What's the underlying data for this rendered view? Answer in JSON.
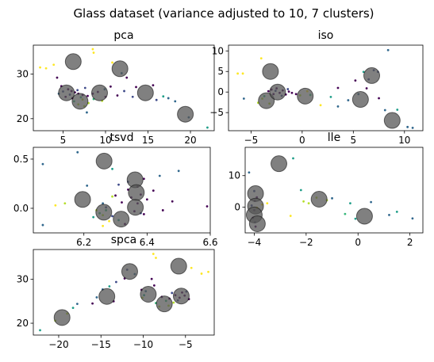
{
  "title": "Glass dataset (variance adjusted to 10, 7 clusters)",
  "palette": {
    "c0": "#440154",
    "c1": "#30678d",
    "c2": "#35b779",
    "c3": "#fde725",
    "c4": "#1f9e89",
    "c5": "#3e4a89",
    "c6": "#b5de2b",
    "center": "#555555"
  },
  "chart_data": [
    {
      "type": "scatter",
      "title": "pca",
      "xlim": [
        1.5,
        22.8
      ],
      "ylim": [
        17.3,
        36.5
      ],
      "xticks": [
        5,
        10,
        15,
        20
      ],
      "yticks": [
        20,
        30
      ],
      "centers": [
        [
          6.2,
          32.8
        ],
        [
          11.7,
          31.2
        ],
        [
          5.4,
          25.8
        ],
        [
          7.0,
          23.9
        ],
        [
          9.3,
          25.8
        ],
        [
          14.7,
          25.8
        ],
        [
          19.4,
          21.0
        ]
      ],
      "points": [
        {
          "x": 2.3,
          "y": 31.5,
          "c": 3
        },
        {
          "x": 3.0,
          "y": 31.3,
          "c": 3
        },
        {
          "x": 3.9,
          "y": 32.1,
          "c": 3
        },
        {
          "x": 8.5,
          "y": 35.6,
          "c": 3
        },
        {
          "x": 8.6,
          "y": 34.8,
          "c": 3
        },
        {
          "x": 10.8,
          "y": 32.6,
          "c": 3
        },
        {
          "x": 4.3,
          "y": 29.2,
          "c": 0
        },
        {
          "x": 4.8,
          "y": 27.3,
          "c": 0
        },
        {
          "x": 5.6,
          "y": 26.6,
          "c": 0
        },
        {
          "x": 6.0,
          "y": 26.2,
          "c": 0
        },
        {
          "x": 6.4,
          "y": 25.9,
          "c": 0
        },
        {
          "x": 6.8,
          "y": 25.6,
          "c": 0
        },
        {
          "x": 7.3,
          "y": 25.3,
          "c": 0
        },
        {
          "x": 7.9,
          "y": 25.1,
          "c": 0
        },
        {
          "x": 8.5,
          "y": 25.6,
          "c": 0
        },
        {
          "x": 9.1,
          "y": 26.0,
          "c": 0
        },
        {
          "x": 10.0,
          "y": 24.9,
          "c": 0
        },
        {
          "x": 10.6,
          "y": 27.2,
          "c": 0
        },
        {
          "x": 11.4,
          "y": 25.2,
          "c": 0
        },
        {
          "x": 12.5,
          "y": 29.2,
          "c": 0
        },
        {
          "x": 13.6,
          "y": 27.1,
          "c": 0
        },
        {
          "x": 15.6,
          "y": 27.5,
          "c": 0
        },
        {
          "x": 5.3,
          "y": 24.9,
          "c": 0
        },
        {
          "x": 6.1,
          "y": 24.6,
          "c": 0
        },
        {
          "x": 5.0,
          "y": 26.1,
          "c": 5
        },
        {
          "x": 5.8,
          "y": 25.4,
          "c": 5
        },
        {
          "x": 6.7,
          "y": 26.4,
          "c": 5
        },
        {
          "x": 7.6,
          "y": 26.9,
          "c": 5
        },
        {
          "x": 12.2,
          "y": 26.2,
          "c": 5
        },
        {
          "x": 13.2,
          "y": 24.9,
          "c": 5
        },
        {
          "x": 16.0,
          "y": 24.2,
          "c": 5
        },
        {
          "x": 6.8,
          "y": 23.2,
          "c": 6
        },
        {
          "x": 7.3,
          "y": 24.3,
          "c": 6
        },
        {
          "x": 8.0,
          "y": 23.5,
          "c": 6
        },
        {
          "x": 9.6,
          "y": 24.0,
          "c": 6
        },
        {
          "x": 7.5,
          "y": 22.8,
          "c": 6
        },
        {
          "x": 4.5,
          "y": 25.6,
          "c": 1
        },
        {
          "x": 7.8,
          "y": 21.4,
          "c": 1
        },
        {
          "x": 9.9,
          "y": 26.6,
          "c": 1
        },
        {
          "x": 11.9,
          "y": 30.2,
          "c": 1
        },
        {
          "x": 17.4,
          "y": 24.6,
          "c": 1
        },
        {
          "x": 18.2,
          "y": 23.9,
          "c": 1
        },
        {
          "x": 19.8,
          "y": 20.3,
          "c": 1
        },
        {
          "x": 6.3,
          "y": 23.9,
          "c": 2
        },
        {
          "x": 7.1,
          "y": 24.8,
          "c": 2
        },
        {
          "x": 8.6,
          "y": 24.4,
          "c": 2
        },
        {
          "x": 16.8,
          "y": 25.0,
          "c": 4
        },
        {
          "x": 22.0,
          "y": 18.0,
          "c": 4
        }
      ]
    },
    {
      "type": "scatter",
      "title": "iso",
      "xlim": [
        -7.2,
        11.8
      ],
      "ylim": [
        -9.4,
        11.4
      ],
      "xticks": [
        -5,
        0,
        5,
        10
      ],
      "yticks": [
        -5,
        0,
        5,
        10
      ],
      "centers": [
        [
          -3.1,
          5.0
        ],
        [
          -3.5,
          -2.1
        ],
        [
          -2.4,
          0.0
        ],
        [
          0.3,
          -1.0
        ],
        [
          5.7,
          -1.8
        ],
        [
          6.8,
          4.0
        ],
        [
          8.8,
          -6.9
        ]
      ],
      "points": [
        {
          "x": -6.3,
          "y": 4.5,
          "c": 3
        },
        {
          "x": -5.8,
          "y": 4.5,
          "c": 3
        },
        {
          "x": -4.0,
          "y": 8.2,
          "c": 3
        },
        {
          "x": 1.8,
          "y": -3.2,
          "c": 3
        },
        {
          "x": 0.5,
          "y": 0.2,
          "c": 3
        },
        {
          "x": -3.0,
          "y": 0.6,
          "c": 0
        },
        {
          "x": -2.8,
          "y": -0.5,
          "c": 0
        },
        {
          "x": -2.5,
          "y": 0.9,
          "c": 0
        },
        {
          "x": -2.2,
          "y": -0.2,
          "c": 0
        },
        {
          "x": -1.9,
          "y": 0.4,
          "c": 0
        },
        {
          "x": -1.6,
          "y": -0.6,
          "c": 0
        },
        {
          "x": -1.3,
          "y": 0.1,
          "c": 0
        },
        {
          "x": -1.0,
          "y": -0.2,
          "c": 0
        },
        {
          "x": -0.6,
          "y": -0.5,
          "c": 0
        },
        {
          "x": -3.3,
          "y": 0.2,
          "c": 0
        },
        {
          "x": 3.5,
          "y": 1.0,
          "c": 0
        },
        {
          "x": 5.2,
          "y": 2.8,
          "c": 0
        },
        {
          "x": 6.3,
          "y": 0.9,
          "c": 0
        },
        {
          "x": 7.5,
          "y": -1.5,
          "c": 0
        },
        {
          "x": -2.6,
          "y": 0.3,
          "c": 5
        },
        {
          "x": -2.0,
          "y": -0.9,
          "c": 5
        },
        {
          "x": -1.4,
          "y": 0.7,
          "c": 5
        },
        {
          "x": 7.0,
          "y": 5.3,
          "c": 5
        },
        {
          "x": 7.4,
          "y": 4.9,
          "c": 5
        },
        {
          "x": 6.5,
          "y": 3.1,
          "c": 5
        },
        {
          "x": -3.9,
          "y": -1.6,
          "c": 6
        },
        {
          "x": -3.2,
          "y": -2.8,
          "c": 6
        },
        {
          "x": -4.3,
          "y": -2.6,
          "c": 6
        },
        {
          "x": -0.2,
          "y": -0.8,
          "c": 6
        },
        {
          "x": -5.7,
          "y": -1.6,
          "c": 1
        },
        {
          "x": 3.5,
          "y": -3.5,
          "c": 1
        },
        {
          "x": 4.5,
          "y": -2.0,
          "c": 1
        },
        {
          "x": 5.5,
          "y": -0.5,
          "c": 1
        },
        {
          "x": 8.1,
          "y": -4.4,
          "c": 1
        },
        {
          "x": 8.4,
          "y": 10.2,
          "c": 1
        },
        {
          "x": 10.3,
          "y": -8.5,
          "c": 1
        },
        {
          "x": 10.8,
          "y": -8.7,
          "c": 1
        },
        {
          "x": -3.7,
          "y": -1.0,
          "c": 2
        },
        {
          "x": 0.8,
          "y": -0.7,
          "c": 2
        },
        {
          "x": 2.8,
          "y": -1.2,
          "c": 4
        },
        {
          "x": 6.0,
          "y": 4.9,
          "c": 4
        },
        {
          "x": 9.3,
          "y": -4.3,
          "c": 4
        }
      ]
    },
    {
      "type": "scatter",
      "title": "tsvd",
      "xlim": [
        6.04,
        6.6
      ],
      "ylim": [
        -0.25,
        0.62
      ],
      "xticks": [
        6.2,
        6.4,
        6.6
      ],
      "xticklabels": [
        "6.2",
        "6.4",
        "6.6"
      ],
      "yticks": [
        0.0,
        0.5
      ],
      "yticklabels": [
        "0.0",
        "0.5"
      ],
      "centers": [
        [
          6.264,
          0.48
        ],
        [
          6.362,
          0.29
        ],
        [
          6.366,
          0.16
        ],
        [
          6.196,
          0.09
        ],
        [
          6.363,
          0.01
        ],
        [
          6.263,
          -0.04
        ],
        [
          6.318,
          -0.11
        ]
      ],
      "points": [
        {
          "x": 6.11,
          "y": 0.03,
          "c": 3
        },
        {
          "x": 6.26,
          "y": -0.18,
          "c": 3
        },
        {
          "x": 6.28,
          "y": -0.13,
          "c": 3
        },
        {
          "x": 6.3,
          "y": 0.13,
          "c": 0
        },
        {
          "x": 6.32,
          "y": 0.06,
          "c": 0
        },
        {
          "x": 6.34,
          "y": 0.19,
          "c": 0
        },
        {
          "x": 6.35,
          "y": 0.11,
          "c": 0
        },
        {
          "x": 6.36,
          "y": -0.03,
          "c": 0
        },
        {
          "x": 6.37,
          "y": 0.22,
          "c": 0
        },
        {
          "x": 6.37,
          "y": 0.05,
          "c": 0
        },
        {
          "x": 6.38,
          "y": 0.14,
          "c": 0
        },
        {
          "x": 6.39,
          "y": 0.3,
          "c": 0
        },
        {
          "x": 6.39,
          "y": -0.06,
          "c": 0
        },
        {
          "x": 6.4,
          "y": 0.09,
          "c": 0
        },
        {
          "x": 6.42,
          "y": 0.18,
          "c": 0
        },
        {
          "x": 6.45,
          "y": -0.02,
          "c": 0
        },
        {
          "x": 6.48,
          "y": 0.07,
          "c": 0
        },
        {
          "x": 6.59,
          "y": 0.02,
          "c": 0
        },
        {
          "x": 6.33,
          "y": -0.16,
          "c": 0
        },
        {
          "x": 6.27,
          "y": 0.01,
          "c": 5
        },
        {
          "x": 6.29,
          "y": -0.08,
          "c": 5
        },
        {
          "x": 6.31,
          "y": 0.24,
          "c": 5
        },
        {
          "x": 6.34,
          "y": 0.27,
          "c": 5
        },
        {
          "x": 6.38,
          "y": -0.05,
          "c": 5
        },
        {
          "x": 6.14,
          "y": 0.05,
          "c": 6
        },
        {
          "x": 6.24,
          "y": -0.02,
          "c": 6
        },
        {
          "x": 6.26,
          "y": -0.07,
          "c": 6
        },
        {
          "x": 6.29,
          "y": 0.12,
          "c": 6
        },
        {
          "x": 6.07,
          "y": 0.45,
          "c": 1
        },
        {
          "x": 6.07,
          "y": -0.17,
          "c": 1
        },
        {
          "x": 6.18,
          "y": 0.57,
          "c": 1
        },
        {
          "x": 6.21,
          "y": 0.23,
          "c": 1
        },
        {
          "x": 6.26,
          "y": 0.05,
          "c": 1
        },
        {
          "x": 6.44,
          "y": 0.33,
          "c": 1
        },
        {
          "x": 6.5,
          "y": 0.38,
          "c": 1
        },
        {
          "x": 6.25,
          "y": -0.05,
          "c": 2
        },
        {
          "x": 6.27,
          "y": -0.02,
          "c": 2
        },
        {
          "x": 6.29,
          "y": 0.4,
          "c": 4
        },
        {
          "x": 6.23,
          "y": -0.09,
          "c": 4
        },
        {
          "x": 6.31,
          "y": -0.12,
          "c": 4
        }
      ]
    },
    {
      "type": "scatter",
      "title": "lle",
      "xlim": [
        -4.35,
        2.5
      ],
      "ylim": [
        -8.2,
        19.0
      ],
      "xticks": [
        -4,
        -2,
        0,
        2
      ],
      "yticks": [
        0,
        10
      ],
      "centers": [
        [
          -3.05,
          13.8
        ],
        [
          -3.95,
          4.3
        ],
        [
          -3.95,
          0.3
        ],
        [
          -4.0,
          -2.5
        ],
        [
          -3.88,
          -5.3
        ],
        [
          -1.5,
          2.5
        ],
        [
          0.25,
          -2.9
        ]
      ],
      "points": [
        {
          "x": -3.9,
          "y": -0.2,
          "c": 3
        },
        {
          "x": -3.7,
          "y": 0.8,
          "c": 3
        },
        {
          "x": -3.5,
          "y": 1.2,
          "c": 3
        },
        {
          "x": -2.6,
          "y": -2.8,
          "c": 3
        },
        {
          "x": -4.05,
          "y": -3.4,
          "c": 0
        },
        {
          "x": -4.0,
          "y": -1.0,
          "c": 0
        },
        {
          "x": -3.98,
          "y": 2.0,
          "c": 0
        },
        {
          "x": -3.95,
          "y": -6.2,
          "c": 0
        },
        {
          "x": -3.9,
          "y": 3.1,
          "c": 0
        },
        {
          "x": -4.1,
          "y": 0.5,
          "c": 5
        },
        {
          "x": -4.0,
          "y": 5.1,
          "c": 5
        },
        {
          "x": -3.97,
          "y": -4.8,
          "c": 5
        },
        {
          "x": -2.1,
          "y": 1.8,
          "c": 6
        },
        {
          "x": -1.9,
          "y": 1.2,
          "c": 6
        },
        {
          "x": -1.6,
          "y": 3.0,
          "c": 6
        },
        {
          "x": -1.2,
          "y": 2.2,
          "c": 6
        },
        {
          "x": -4.2,
          "y": 11.0,
          "c": 1
        },
        {
          "x": -1.0,
          "y": 2.8,
          "c": 1
        },
        {
          "x": 0.5,
          "y": 1.6,
          "c": 1
        },
        {
          "x": 1.2,
          "y": -2.5,
          "c": 1
        },
        {
          "x": 2.1,
          "y": -3.6,
          "c": 1
        },
        {
          "x": -2.5,
          "y": 15.5,
          "c": 4
        },
        {
          "x": -2.2,
          "y": 5.4,
          "c": 4
        },
        {
          "x": -0.3,
          "y": 1.2,
          "c": 4
        },
        {
          "x": -0.1,
          "y": -3.7,
          "c": 4
        },
        {
          "x": 1.5,
          "y": -1.5,
          "c": 4
        },
        {
          "x": -0.5,
          "y": -2.2,
          "c": 2
        }
      ]
    },
    {
      "type": "scatter",
      "title": "spca",
      "xlim": [
        -23.0,
        -1.6
      ],
      "ylim": [
        17.3,
        36.8
      ],
      "xticks": [
        -20,
        -15,
        -10,
        -5
      ],
      "yticks": [
        20,
        30
      ],
      "centers": [
        [
          -11.6,
          31.8
        ],
        [
          -5.8,
          33.0
        ],
        [
          -19.6,
          21.3
        ],
        [
          -14.3,
          26.1
        ],
        [
          -9.4,
          26.6
        ],
        [
          -7.5,
          24.4
        ],
        [
          -5.5,
          26.2
        ]
      ],
      "points": [
        {
          "x": -8.8,
          "y": 35.8,
          "c": 3
        },
        {
          "x": -8.5,
          "y": 34.9,
          "c": 3
        },
        {
          "x": -4.3,
          "y": 32.6,
          "c": 3
        },
        {
          "x": -2.3,
          "y": 31.7,
          "c": 3
        },
        {
          "x": -3.1,
          "y": 31.3,
          "c": 3
        },
        {
          "x": -12.2,
          "y": 30.2,
          "c": 0
        },
        {
          "x": -10.2,
          "y": 27.6,
          "c": 0
        },
        {
          "x": -8.7,
          "y": 28.6,
          "c": 0
        },
        {
          "x": -7.8,
          "y": 26.0,
          "c": 0
        },
        {
          "x": -6.9,
          "y": 25.6,
          "c": 0
        },
        {
          "x": -6.2,
          "y": 26.4,
          "c": 0
        },
        {
          "x": -5.7,
          "y": 25.8,
          "c": 0
        },
        {
          "x": -5.1,
          "y": 26.3,
          "c": 0
        },
        {
          "x": -4.6,
          "y": 25.5,
          "c": 0
        },
        {
          "x": -5.4,
          "y": 27.0,
          "c": 0
        },
        {
          "x": -9.0,
          "y": 30.1,
          "c": 0
        },
        {
          "x": -13.5,
          "y": 25.0,
          "c": 0
        },
        {
          "x": -16.0,
          "y": 24.5,
          "c": 0
        },
        {
          "x": -6.6,
          "y": 26.9,
          "c": 5
        },
        {
          "x": -5.9,
          "y": 25.2,
          "c": 5
        },
        {
          "x": -4.9,
          "y": 27.2,
          "c": 5
        },
        {
          "x": -11.9,
          "y": 32.2,
          "c": 5
        },
        {
          "x": -13.2,
          "y": 29.4,
          "c": 5
        },
        {
          "x": -20.4,
          "y": 20.6,
          "c": 6
        },
        {
          "x": -19.0,
          "y": 22.2,
          "c": 6
        },
        {
          "x": -10.1,
          "y": 25.8,
          "c": 6
        },
        {
          "x": -8.1,
          "y": 23.8,
          "c": 6
        },
        {
          "x": -7.0,
          "y": 24.0,
          "c": 6
        },
        {
          "x": -6.4,
          "y": 24.7,
          "c": 6
        },
        {
          "x": -17.8,
          "y": 24.4,
          "c": 1
        },
        {
          "x": -15.5,
          "y": 25.9,
          "c": 1
        },
        {
          "x": -14.8,
          "y": 27.7,
          "c": 1
        },
        {
          "x": -11.0,
          "y": 31.2,
          "c": 1
        },
        {
          "x": -9.7,
          "y": 27.3,
          "c": 1
        },
        {
          "x": -22.2,
          "y": 18.4,
          "c": 4
        },
        {
          "x": -18.3,
          "y": 23.5,
          "c": 4
        },
        {
          "x": -14.0,
          "y": 28.4,
          "c": 4
        },
        {
          "x": -9.9,
          "y": 26.4,
          "c": 4
        },
        {
          "x": -8.5,
          "y": 24.6,
          "c": 2
        },
        {
          "x": -7.3,
          "y": 25.1,
          "c": 2
        }
      ]
    }
  ]
}
